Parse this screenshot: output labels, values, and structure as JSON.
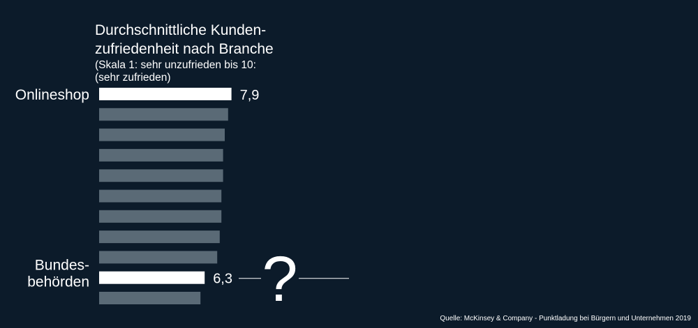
{
  "colors": {
    "background": "#0c1b2a",
    "highlight_bar": "#ffffff",
    "other_bar": "#5a6a76",
    "text": "#ffffff"
  },
  "source_text": "Quelle: McKinsey & Company - Punktladung bei Bürgern und Unternehmen 2019",
  "annotation": {
    "symbol": "?"
  },
  "chart_data": {
    "type": "bar",
    "orientation": "horizontal",
    "title": [
      "Durchschnittliche Kunden-",
      "zufriedenheit nach Branche"
    ],
    "subtitle": [
      "(Skala 1: sehr unzufrieden bis 10:",
      "(sehr zufrieden)"
    ],
    "xlim": [
      0,
      10
    ],
    "grid": false,
    "legend": "none",
    "bars": [
      {
        "label": [
          "Onlineshop"
        ],
        "value": 7.9,
        "value_label": "7,9",
        "highlight": true
      },
      {
        "value": 7.7,
        "highlight": false
      },
      {
        "value": 7.5,
        "highlight": false
      },
      {
        "value": 7.4,
        "highlight": false
      },
      {
        "value": 7.4,
        "highlight": false
      },
      {
        "value": 7.3,
        "highlight": false
      },
      {
        "value": 7.3,
        "highlight": false
      },
      {
        "value": 7.2,
        "highlight": false
      },
      {
        "value": 7.05,
        "highlight": false
      },
      {
        "label": [
          "Bundes-",
          "behörden"
        ],
        "value": 6.3,
        "value_label": "6,3",
        "highlight": true
      },
      {
        "value": 6.05,
        "highlight": false
      }
    ]
  }
}
